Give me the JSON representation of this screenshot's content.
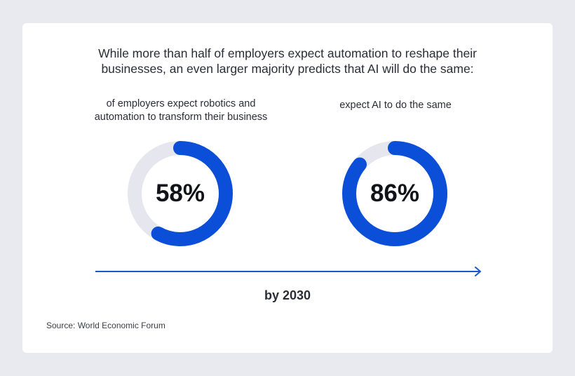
{
  "headline": {
    "line1": "While more than half of employers expect automation to reshape their",
    "line2": "businesses, an even larger majority predicts that AI will do the same:"
  },
  "chart_data": [
    {
      "type": "pie",
      "value_percent": 58,
      "value_label": "58%",
      "label_lines": [
        "of employers expect robotics and",
        "automation to transform their business"
      ]
    },
    {
      "type": "pie",
      "value_percent": 86,
      "value_label": "86%",
      "label_lines": [
        "expect AI to do the same"
      ]
    }
  ],
  "timeline": {
    "label": "by 2030"
  },
  "source": "Source: World Economic Forum",
  "colors": {
    "page_background": "#e9eaef",
    "card_background": "#ffffff",
    "donut_fill": "#0b4fd8",
    "donut_track": "#e6e6ee",
    "arrow": "#1f57c9"
  }
}
